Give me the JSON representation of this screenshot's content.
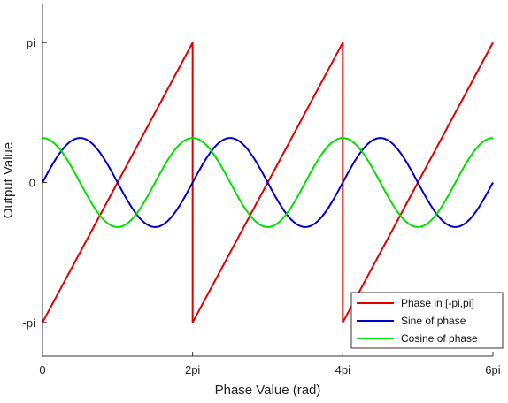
{
  "chart_data": {
    "type": "line",
    "xlabel": "Phase Value (rad)",
    "ylabel": "Output Value",
    "xlim": [
      0,
      18.85
    ],
    "ylim": [
      -3.9,
      4.0
    ],
    "x_ticks": [
      {
        "value": 0,
        "label": "0"
      },
      {
        "value": 6.2832,
        "label": "2pi"
      },
      {
        "value": 12.5664,
        "label": "4pi"
      },
      {
        "value": 18.8496,
        "label": "6pi"
      }
    ],
    "y_ticks": [
      {
        "value": -3.1416,
        "label": "-pi"
      },
      {
        "value": 0,
        "label": "0"
      },
      {
        "value": 3.1416,
        "label": "pi"
      }
    ],
    "legend_position": "bottom-right",
    "series": [
      {
        "name": "Phase in [-pi,pi]",
        "color": "#e00000",
        "x": [
          0,
          6.2832,
          6.2832,
          12.5664,
          12.5664,
          18.8496
        ],
        "y": [
          -3.1416,
          3.1416,
          -3.1416,
          3.1416,
          -3.1416,
          3.1416
        ]
      },
      {
        "name": "Sine of phase",
        "color": "#0000cc",
        "function": "sin",
        "x_range": [
          0,
          18.8496
        ]
      },
      {
        "name": "Cosine of phase",
        "color": "#00e000",
        "function": "cos",
        "x_range": [
          0,
          18.8496
        ]
      }
    ]
  }
}
